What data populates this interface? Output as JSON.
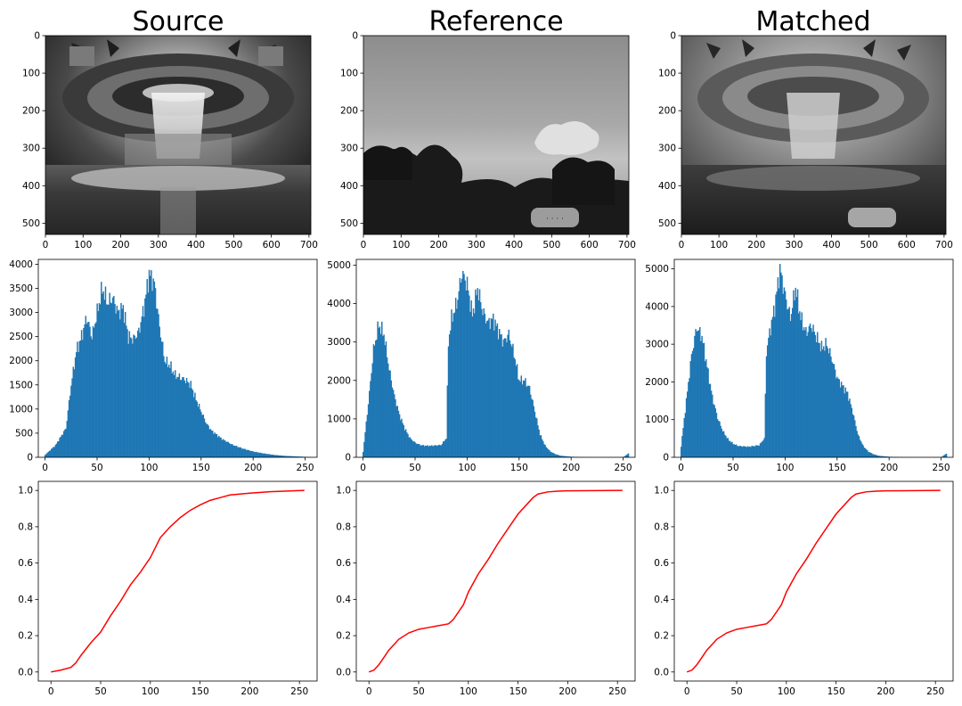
{
  "figure": {
    "columns": [
      "Source",
      "Reference",
      "Matched"
    ]
  },
  "chart_data": [
    {
      "type": "image",
      "panel": "Source",
      "row": "image",
      "xlim": [
        0,
        705
      ],
      "ylim": [
        530,
        0
      ],
      "xticks": [
        0,
        100,
        200,
        300,
        400,
        500,
        600,
        700
      ],
      "yticks": [
        0,
        100,
        200,
        300,
        400,
        500
      ],
      "content": "grayscale photo of ornate hotel lobby ceiling with crystal chandelier and fountain"
    },
    {
      "type": "image",
      "panel": "Reference",
      "row": "image",
      "xlim": [
        0,
        705
      ],
      "ylim": [
        530,
        0
      ],
      "xticks": [
        0,
        100,
        200,
        300,
        400,
        500,
        600,
        700
      ],
      "yticks": [
        0,
        100,
        200,
        300,
        400,
        500
      ],
      "content": "grayscale photo of cloudy sky over silhouetted trees with a carved stone sign"
    },
    {
      "type": "image",
      "panel": "Matched",
      "row": "image",
      "xlim": [
        0,
        705
      ],
      "ylim": [
        530,
        0
      ],
      "xticks": [
        0,
        100,
        200,
        300,
        400,
        500,
        600,
        700
      ],
      "yticks": [
        0,
        100,
        200,
        300,
        400,
        500
      ],
      "content": "histogram-matched grayscale lobby photo"
    },
    {
      "type": "bar",
      "panel": "Source",
      "row": "histogram",
      "color": "#1f77b4",
      "xlim": [
        -6.5,
        261.5
      ],
      "ylim": [
        0,
        4100
      ],
      "xticks": [
        0,
        50,
        100,
        150,
        200,
        250
      ],
      "yticks": [
        0,
        500,
        1000,
        1500,
        2000,
        2500,
        3000,
        3500,
        4000
      ],
      "x": [
        0,
        10,
        20,
        25,
        30,
        35,
        40,
        45,
        50,
        55,
        60,
        65,
        70,
        75,
        80,
        85,
        90,
        95,
        100,
        105,
        110,
        115,
        120,
        125,
        130,
        135,
        140,
        145,
        150,
        155,
        160,
        170,
        180,
        190,
        200,
        210,
        220,
        230,
        240,
        250,
        255
      ],
      "values": [
        50,
        250,
        600,
        1500,
        2200,
        2500,
        2900,
        2500,
        3000,
        3500,
        3200,
        3300,
        3000,
        3100,
        2500,
        2450,
        2600,
        3100,
        3800,
        3600,
        2700,
        2000,
        1900,
        1700,
        1650,
        1600,
        1500,
        1200,
        950,
        700,
        550,
        380,
        260,
        180,
        120,
        80,
        50,
        30,
        20,
        10,
        5
      ]
    },
    {
      "type": "bar",
      "panel": "Reference",
      "row": "histogram",
      "color": "#1f77b4",
      "xlim": [
        -6.5,
        261.5
      ],
      "ylim": [
        0,
        5150
      ],
      "xticks": [
        0,
        50,
        100,
        150,
        200,
        250
      ],
      "yticks": [
        0,
        1000,
        2000,
        3000,
        4000,
        5000
      ],
      "x": [
        0,
        5,
        10,
        15,
        20,
        25,
        30,
        35,
        40,
        45,
        50,
        55,
        60,
        65,
        70,
        75,
        80,
        82,
        85,
        90,
        95,
        100,
        105,
        110,
        115,
        120,
        125,
        130,
        135,
        140,
        145,
        150,
        155,
        160,
        165,
        170,
        175,
        180,
        185,
        190,
        200,
        210,
        220,
        230,
        240,
        250,
        255
      ],
      "values": [
        150,
        1400,
        2800,
        3450,
        3200,
        2300,
        1600,
        1100,
        750,
        500,
        380,
        320,
        300,
        300,
        310,
        320,
        500,
        3000,
        3600,
        4000,
        4800,
        4500,
        3700,
        4400,
        3800,
        3500,
        3600,
        3300,
        3000,
        3200,
        2700,
        2000,
        2000,
        1800,
        1200,
        600,
        300,
        150,
        80,
        40,
        15,
        5,
        0,
        0,
        0,
        0,
        100
      ]
    },
    {
      "type": "bar",
      "panel": "Matched",
      "row": "histogram",
      "color": "#1f77b4",
      "xlim": [
        -6.5,
        261.5
      ],
      "ylim": [
        0,
        5250
      ],
      "xticks": [
        0,
        50,
        100,
        150,
        200,
        250
      ],
      "yticks": [
        0,
        1000,
        2000,
        3000,
        4000,
        5000
      ],
      "x": [
        0,
        5,
        10,
        15,
        20,
        25,
        30,
        35,
        40,
        45,
        50,
        55,
        60,
        65,
        70,
        75,
        80,
        82,
        85,
        90,
        95,
        100,
        105,
        110,
        115,
        120,
        125,
        130,
        135,
        140,
        145,
        150,
        155,
        160,
        165,
        170,
        175,
        180,
        185,
        190,
        200,
        210,
        220,
        230,
        240,
        250,
        255
      ],
      "values": [
        300,
        1500,
        2700,
        3450,
        3200,
        2400,
        1600,
        1050,
        700,
        480,
        360,
        300,
        290,
        280,
        300,
        320,
        500,
        2800,
        3300,
        4000,
        5000,
        4300,
        3700,
        4500,
        3700,
        3300,
        3500,
        3200,
        2900,
        3000,
        2600,
        2100,
        1900,
        1700,
        1200,
        600,
        300,
        150,
        80,
        40,
        15,
        5,
        0,
        0,
        0,
        0,
        100
      ]
    },
    {
      "type": "line",
      "panel": "Source",
      "row": "cdf",
      "color": "#ff0000",
      "xlim": [
        -12.75,
        267.75
      ],
      "ylim": [
        -0.05,
        1.05
      ],
      "xticks": [
        0,
        50,
        100,
        150,
        200,
        250
      ],
      "yticks": [
        0.0,
        0.2,
        0.4,
        0.6,
        0.8,
        1.0
      ],
      "x": [
        0,
        10,
        20,
        25,
        30,
        40,
        50,
        60,
        70,
        80,
        90,
        100,
        110,
        120,
        130,
        140,
        150,
        160,
        170,
        180,
        200,
        220,
        255
      ],
      "values": [
        0.0,
        0.01,
        0.025,
        0.05,
        0.09,
        0.16,
        0.22,
        0.31,
        0.39,
        0.48,
        0.55,
        0.63,
        0.74,
        0.8,
        0.85,
        0.89,
        0.92,
        0.945,
        0.96,
        0.975,
        0.985,
        0.993,
        1.0
      ]
    },
    {
      "type": "line",
      "panel": "Reference",
      "row": "cdf",
      "color": "#ff0000",
      "xlim": [
        -12.75,
        267.75
      ],
      "ylim": [
        -0.05,
        1.05
      ],
      "xticks": [
        0,
        50,
        100,
        150,
        200,
        250
      ],
      "yticks": [
        0.0,
        0.2,
        0.4,
        0.6,
        0.8,
        1.0
      ],
      "x": [
        0,
        5,
        10,
        15,
        20,
        30,
        40,
        50,
        60,
        70,
        80,
        85,
        90,
        95,
        100,
        110,
        120,
        130,
        140,
        150,
        160,
        165,
        170,
        180,
        190,
        200,
        255
      ],
      "values": [
        0.0,
        0.01,
        0.04,
        0.08,
        0.12,
        0.18,
        0.215,
        0.235,
        0.245,
        0.255,
        0.265,
        0.29,
        0.33,
        0.37,
        0.44,
        0.54,
        0.62,
        0.71,
        0.79,
        0.87,
        0.93,
        0.96,
        0.98,
        0.992,
        0.996,
        0.998,
        1.0
      ]
    },
    {
      "type": "line",
      "panel": "Matched",
      "row": "cdf",
      "color": "#ff0000",
      "xlim": [
        -12.75,
        267.75
      ],
      "ylim": [
        -0.05,
        1.05
      ],
      "xticks": [
        0,
        50,
        100,
        150,
        200,
        250
      ],
      "yticks": [
        0.0,
        0.2,
        0.4,
        0.6,
        0.8,
        1.0
      ],
      "x": [
        0,
        5,
        10,
        15,
        20,
        30,
        40,
        50,
        60,
        70,
        80,
        85,
        90,
        95,
        100,
        110,
        120,
        130,
        140,
        150,
        160,
        165,
        170,
        180,
        190,
        200,
        255
      ],
      "values": [
        0.0,
        0.01,
        0.04,
        0.08,
        0.12,
        0.18,
        0.215,
        0.235,
        0.245,
        0.255,
        0.265,
        0.29,
        0.33,
        0.37,
        0.44,
        0.54,
        0.62,
        0.71,
        0.79,
        0.87,
        0.93,
        0.96,
        0.98,
        0.992,
        0.996,
        0.998,
        1.0
      ]
    }
  ]
}
